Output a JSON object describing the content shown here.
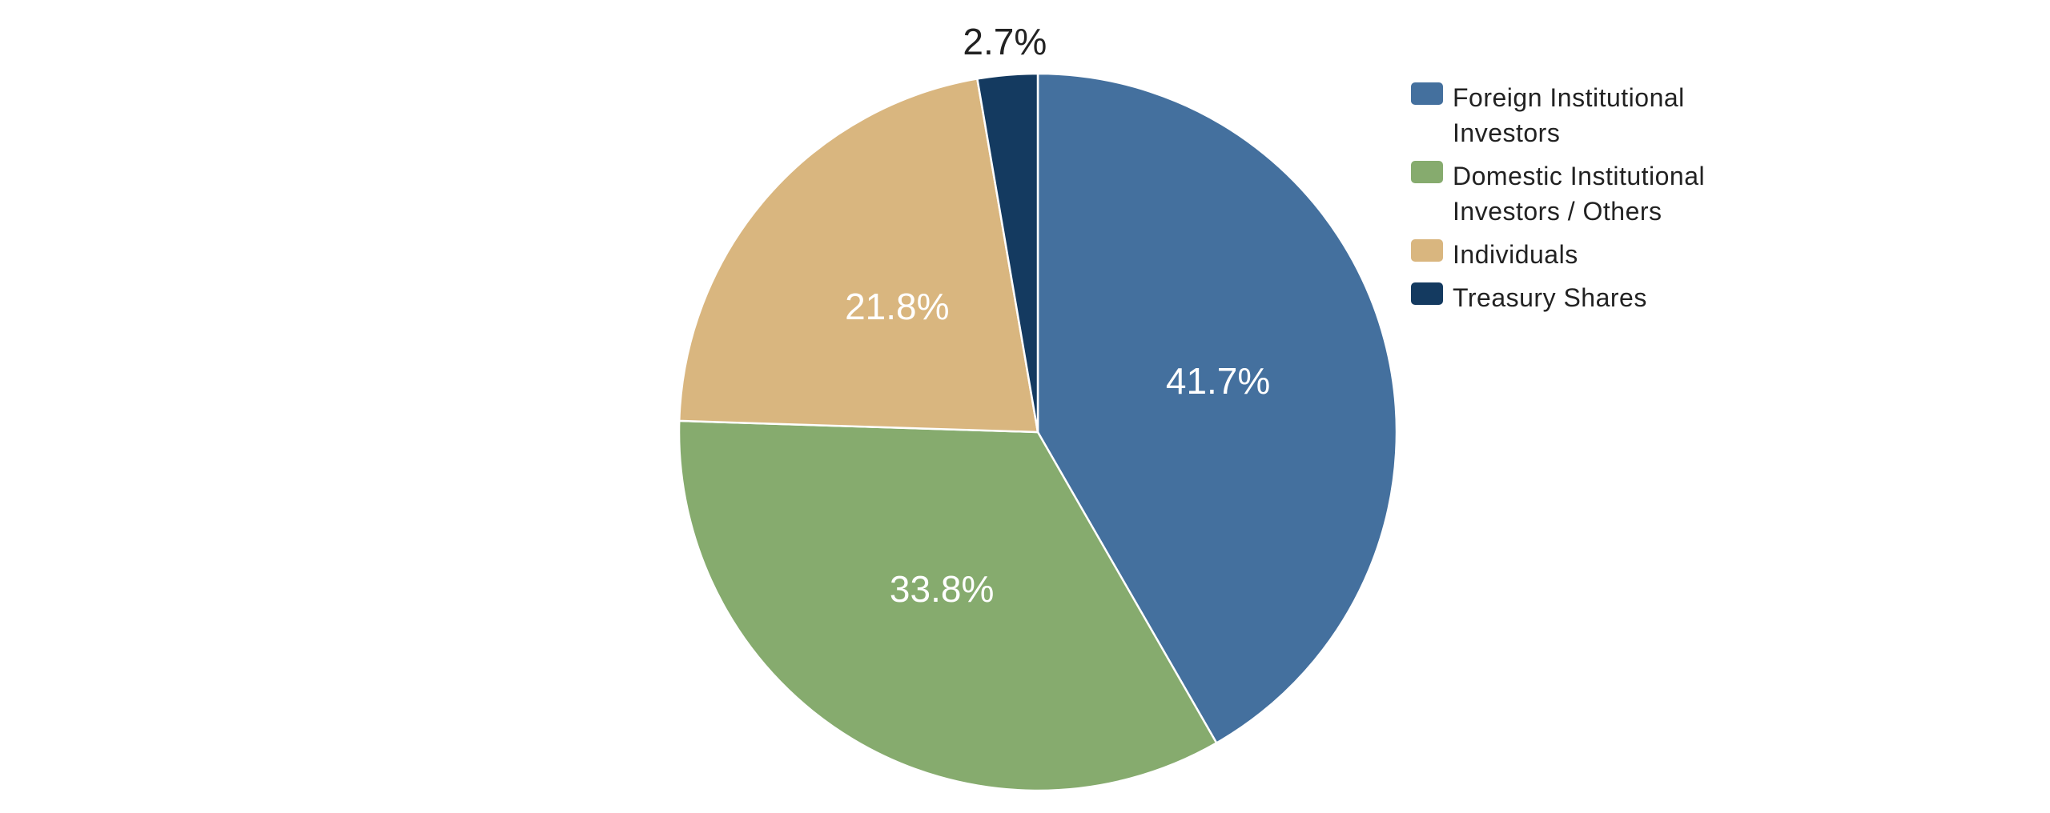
{
  "chart_data": {
    "type": "pie",
    "start_angle_deg": 0,
    "direction": "clockwise",
    "slices": [
      {
        "label": "Foreign Institutional Investors",
        "value": 41.7,
        "display": "41.7%",
        "color": "#44709e",
        "label_color": "#ffffff"
      },
      {
        "label": "Domestic Institutional Investors / Others",
        "value": 33.8,
        "display": "33.8%",
        "color": "#86ab6e",
        "label_color": "#ffffff"
      },
      {
        "label": "Individuals",
        "value": 21.8,
        "display": "21.8%",
        "color": "#d9b67f",
        "label_color": "#ffffff"
      },
      {
        "label": "Treasury Shares",
        "value": 2.7,
        "display": "2.7%",
        "color": "#143a60",
        "label_color": "#222222",
        "label_outside": true
      }
    ],
    "legend_placement": "top-right"
  },
  "legend": {
    "items": [
      {
        "line1": "Foreign Institutional",
        "line2": "Investors",
        "color": "#44709e"
      },
      {
        "line1": "Domestic Institutional",
        "line2": "Investors / Others",
        "color": "#86ab6e"
      },
      {
        "line1": "Individuals",
        "line2": "",
        "color": "#d9b67f"
      },
      {
        "line1": "Treasury Shares",
        "line2": "",
        "color": "#143a60"
      }
    ]
  }
}
